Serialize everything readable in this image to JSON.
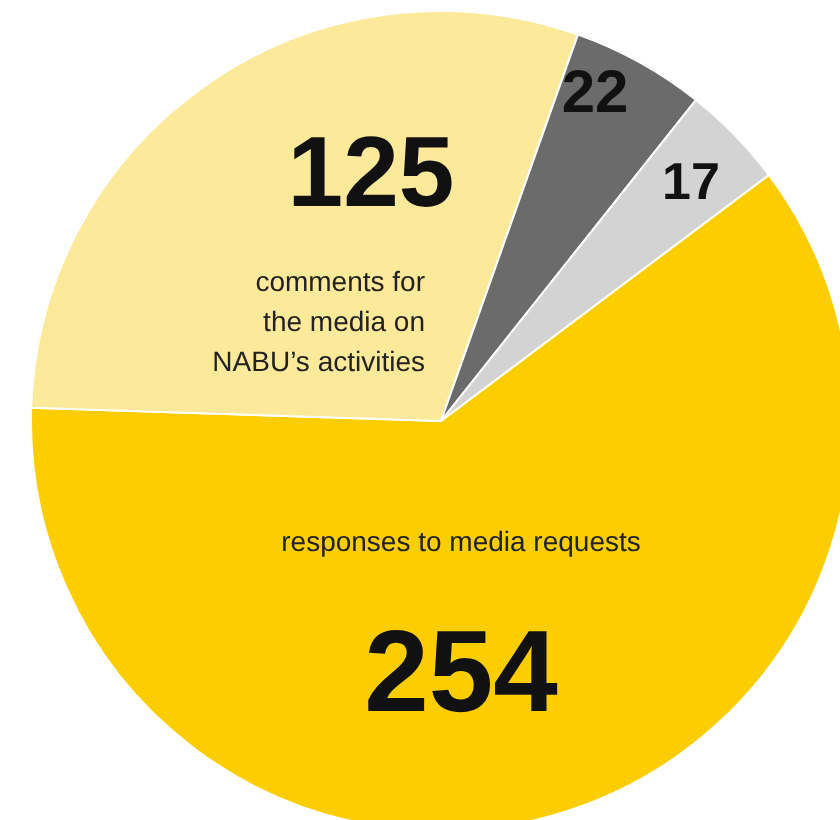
{
  "chart_data": {
    "type": "pie",
    "categories": [
      "responses to media requests",
      "comments for\nthe media on\nNABU’s activities",
      null,
      null
    ],
    "values": [
      254,
      125,
      22,
      17
    ],
    "colors": [
      "#fccd00",
      "#fde99a",
      "#6b6b6b",
      "#d3d3d3"
    ],
    "data_labels": true
  }
}
